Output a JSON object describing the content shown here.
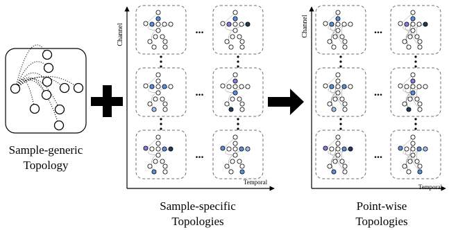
{
  "left_panel": {
    "caption_line1": "Sample-generic",
    "caption_line2": "Topology"
  },
  "middle_panel": {
    "axis_y_label": "Channel",
    "axis_x_label": "Temporal",
    "caption_line1": "Sample-specific",
    "caption_line2": "Topologies"
  },
  "right_panel": {
    "axis_y_label": "Channel",
    "axis_x_label": "Temporal",
    "caption_line1": "Point-wise",
    "caption_line2": "Topologies"
  },
  "operators": {
    "plus": "+",
    "arrow": "arrow"
  },
  "ellipsis": "...",
  "colors": {
    "stroke": "#000000",
    "box_dash": "#6b6b6b",
    "highlight_blue": "#5b8fd6",
    "highlight_purple": "#8a7ad6",
    "highlight_dark": "#1f3a5c",
    "light_blue": "#9ec0ec"
  }
}
